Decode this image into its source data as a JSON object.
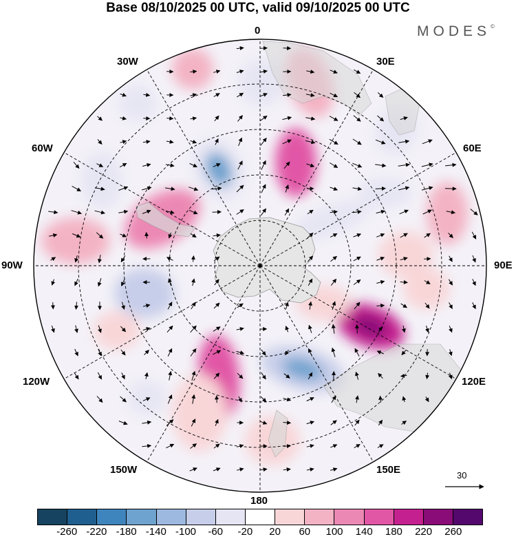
{
  "title": "Base 08/10/2025 00 UTC, valid 09/10/2025 00 UTC",
  "logo": {
    "text": "MODES",
    "mark": "©"
  },
  "longitude_labels": {
    "lon0": "0",
    "lon30e": "30E",
    "lon60e": "60E",
    "lon90e": "90E",
    "lon120e": "120E",
    "lon150e": "150E",
    "lon180": "180",
    "lon150w": "150W",
    "lon120w": "120W",
    "lon90w": "90W",
    "lon60w": "60W",
    "lon30w": "30W"
  },
  "reference_vector": {
    "label": "30"
  },
  "colorbar": {
    "ticks": [
      "-260",
      "-220",
      "-180",
      "-140",
      "-100",
      "-60",
      "-20",
      "20",
      "60",
      "100",
      "140",
      "180",
      "220",
      "260"
    ],
    "colors": [
      "#16435f",
      "#1f5f8f",
      "#3f85bd",
      "#6ea2cf",
      "#9db9df",
      "#c7cee9",
      "#e6e5f3",
      "#ffffff",
      "#f8d6d8",
      "#f3b3c4",
      "#ec88b4",
      "#e157a6",
      "#c4208f",
      "#8a0c78",
      "#54086e"
    ]
  },
  "colors": {
    "continent": "#dcdcdc",
    "grid": "#000000"
  }
}
